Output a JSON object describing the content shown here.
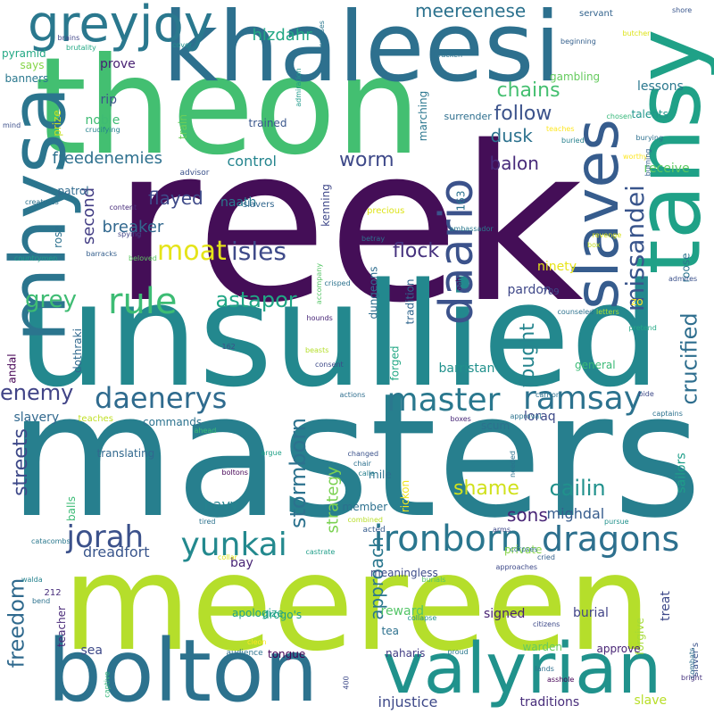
{
  "words": [
    {
      "text": "reek",
      "color": "#440e57"
    },
    {
      "text": "masters",
      "color": "#277f8e"
    },
    {
      "text": "unsullied",
      "color": "#23888e"
    },
    {
      "text": "theon",
      "color": "#43bf71"
    },
    {
      "text": "meereen",
      "color": "#b5de2b"
    },
    {
      "text": "khaleesi",
      "color": "#2d708e"
    },
    {
      "text": "tansy",
      "color": "#1fa187"
    },
    {
      "text": "bolton",
      "color": "#2c728e"
    },
    {
      "text": "valyrian",
      "color": "#20928c"
    },
    {
      "text": "mhysa",
      "color": "#2b758e"
    },
    {
      "text": "slaves",
      "color": "#365c8d"
    },
    {
      "text": "greyjoy",
      "color": "#2a788e"
    },
    {
      "text": "daario",
      "color": "#3b528b"
    },
    {
      "text": "rule",
      "color": "#3dbc74"
    },
    {
      "text": "master",
      "color": "#2a788e"
    },
    {
      "text": "ramsay",
      "color": "#2c728e"
    },
    {
      "text": "daenerys",
      "color": "#2f6b8e"
    },
    {
      "text": "ironborn",
      "color": "#2a768e"
    },
    {
      "text": "dragons",
      "color": "#2d708e"
    },
    {
      "text": "yunkai",
      "color": "#23898e"
    },
    {
      "text": "jorah",
      "color": "#3b518b"
    },
    {
      "text": "missandei",
      "color": "#39558c"
    },
    {
      "text": "moat",
      "color": "#e5e419"
    },
    {
      "text": "isles",
      "color": "#3e4a89"
    },
    {
      "text": "grey",
      "color": "#3fbc73"
    },
    {
      "text": "astapor",
      "color": "#21a685"
    },
    {
      "text": "freedom",
      "color": "#306a8e"
    },
    {
      "text": "chains",
      "color": "#44bf70"
    },
    {
      "text": "enemy",
      "color": "#414487"
    },
    {
      "text": "stormborn",
      "color": "#2c728e"
    },
    {
      "text": "crucified",
      "color": "#2e6e8e"
    },
    {
      "text": "fought",
      "color": "#25858e"
    },
    {
      "text": "cailin",
      "color": "#21918c"
    },
    {
      "text": "shame",
      "color": "#d0e11c"
    },
    {
      "text": "meereenese",
      "color": "#2c728e"
    },
    {
      "text": "hizdahr",
      "color": "#22a884"
    },
    {
      "text": "worm",
      "color": "#3e4989"
    },
    {
      "text": "follow",
      "color": "#3b528b"
    },
    {
      "text": "balon",
      "color": "#472a7a"
    },
    {
      "text": "flock",
      "color": "#46327e"
    },
    {
      "text": "flayed",
      "color": "#3e4a89"
    },
    {
      "text": "breaker",
      "color": "#31688e"
    },
    {
      "text": "freedenemies",
      "color": "#2d708e"
    },
    {
      "text": "control",
      "color": "#25858e"
    },
    {
      "text": "second",
      "color": "#433e85"
    },
    {
      "text": "streets",
      "color": "#3e4989"
    },
    {
      "text": "approach",
      "color": "#2a778e"
    },
    {
      "text": "sons",
      "color": "#482576"
    },
    {
      "text": "dusk",
      "color": "#2c728e"
    },
    {
      "text": "strategy",
      "color": "#7ad151"
    },
    {
      "text": "mighdal",
      "color": "#365c8d"
    },
    {
      "text": "navy",
      "color": "#25838e"
    },
    {
      "text": "dreadfort",
      "color": "#39558c"
    },
    {
      "text": "pardon",
      "color": "#3f4889"
    },
    {
      "text": "ninety",
      "color": "#e7e419"
    },
    {
      "text": "roose",
      "color": "#2b758e"
    },
    {
      "text": "zo",
      "color": "#fde725"
    },
    {
      "text": "naath",
      "color": "#2a788e"
    },
    {
      "text": "patrol",
      "color": "#306a8e"
    },
    {
      "text": "rose",
      "color": "#2c718e"
    },
    {
      "text": "pyramid",
      "color": "#22a884"
    },
    {
      "text": "says",
      "color": "#86d549"
    },
    {
      "text": "banners",
      "color": "#2a788e"
    },
    {
      "text": "prove",
      "color": "#482173"
    },
    {
      "text": "rip",
      "color": "#3b528b"
    },
    {
      "text": "noble",
      "color": "#3fbc73"
    },
    {
      "text": "prize",
      "color": "#c8e020"
    },
    {
      "text": "train",
      "color": "#6ccd5a"
    },
    {
      "text": "trained",
      "color": "#39568c"
    },
    {
      "text": "kenning",
      "color": "#3f4889"
    },
    {
      "text": "marching",
      "color": "#2a768e"
    },
    {
      "text": "surrender",
      "color": "#2e6f8e"
    },
    {
      "text": "163",
      "color": "#2c728e"
    },
    {
      "text": "gambling",
      "color": "#65cb5e"
    },
    {
      "text": "lessons",
      "color": "#2a788e"
    },
    {
      "text": "talents",
      "color": "#1f978b"
    },
    {
      "text": "receive",
      "color": "#5ec962"
    },
    {
      "text": "slavers",
      "color": "#31678e"
    },
    {
      "text": "precious",
      "color": "#dde318"
    },
    {
      "text": "forged",
      "color": "#22a884"
    },
    {
      "text": "tradition",
      "color": "#31678e"
    },
    {
      "text": "dungeons",
      "color": "#2e6d8e"
    },
    {
      "text": "barristan",
      "color": "#21918c"
    },
    {
      "text": "general",
      "color": "#3aba76"
    },
    {
      "text": "andal",
      "color": "#440154"
    },
    {
      "text": "dothraki",
      "color": "#31688e"
    },
    {
      "text": "slavery",
      "color": "#31688e"
    },
    {
      "text": "commands",
      "color": "#2c728e"
    },
    {
      "text": "teaches",
      "color": "#c0df25"
    },
    {
      "text": "translating",
      "color": "#31688e"
    },
    {
      "text": "balls",
      "color": "#3bbb75"
    },
    {
      "text": "rickon",
      "color": "#f1e51d"
    },
    {
      "text": "loraq",
      "color": "#3e4a89"
    },
    {
      "text": "scum",
      "color": "#2c718e"
    },
    {
      "text": "mile",
      "color": "#2c718e"
    },
    {
      "text": "member",
      "color": "#2d708e"
    },
    {
      "text": "bay",
      "color": "#482576"
    },
    {
      "text": "sailors",
      "color": "#1f9e89"
    },
    {
      "text": "meaningless",
      "color": "#3e4c8a"
    },
    {
      "text": "reward",
      "color": "#54c568"
    },
    {
      "text": "tea",
      "color": "#2d718e"
    },
    {
      "text": "signed",
      "color": "#482173"
    },
    {
      "text": "burial",
      "color": "#414487"
    },
    {
      "text": "treat",
      "color": "#3e4989"
    },
    {
      "text": "forgive",
      "color": "#a5db36"
    },
    {
      "text": "apologize",
      "color": "#1fa287"
    },
    {
      "text": "drogo's",
      "color": "#1fa187"
    },
    {
      "text": "tongue",
      "color": "#440154"
    },
    {
      "text": "naharis",
      "color": "#433e85"
    },
    {
      "text": "warden",
      "color": "#65cb5e"
    },
    {
      "text": "approve",
      "color": "#482475"
    },
    {
      "text": "sea",
      "color": "#3e4a89"
    },
    {
      "text": "injustice",
      "color": "#3e4989"
    },
    {
      "text": "traditions",
      "color": "#472c7a"
    },
    {
      "text": "slave",
      "color": "#b8de29"
    },
    {
      "text": "slaver's",
      "color": "#3b528b"
    },
    {
      "text": "teacher",
      "color": "#482878"
    },
    {
      "text": "212",
      "color": "#472d7b"
    },
    {
      "text": "private",
      "color": "#86d549"
    },
    {
      "text": "servant",
      "color": "#33638d"
    },
    {
      "text": "shore",
      "color": "#39568c"
    },
    {
      "text": "butcher",
      "color": "#dde318"
    },
    {
      "text": "beginning",
      "color": "#35608d"
    },
    {
      "text": "bracken",
      "color": "#2c728e"
    },
    {
      "text": "crosses",
      "color": "#2a778e"
    },
    {
      "text": "cover",
      "color": "#21908d"
    },
    {
      "text": "brains",
      "color": "#404588"
    },
    {
      "text": "brutality",
      "color": "#22a884"
    },
    {
      "text": "admiration",
      "color": "#1f9a8a"
    },
    {
      "text": "mind",
      "color": "#3c4f8a"
    },
    {
      "text": "crucifying",
      "color": "#26818e"
    },
    {
      "text": "teaches",
      "color": "#fde725"
    },
    {
      "text": "buried",
      "color": "#27808e"
    },
    {
      "text": "chosen",
      "color": "#35b779"
    },
    {
      "text": "burying",
      "color": "#2d708e"
    },
    {
      "text": "advisor",
      "color": "#3b528b"
    },
    {
      "text": "worthy",
      "color": "#fde725"
    },
    {
      "text": "burning",
      "color": "#34618d"
    },
    {
      "text": "creatures",
      "color": "#2c728e"
    },
    {
      "text": "content",
      "color": "#472c7a"
    },
    {
      "text": "spying",
      "color": "#414487"
    },
    {
      "text": "revenge",
      "color": "#d8e219"
    },
    {
      "text": "betray",
      "color": "#2d708e"
    },
    {
      "text": "ambassador",
      "color": "#2a788e"
    },
    {
      "text": "box",
      "color": "#c2df23"
    },
    {
      "text": "admires",
      "color": "#3b518b"
    },
    {
      "text": "beloved",
      "color": "#5ec962"
    },
    {
      "text": "barracks",
      "color": "#355f8d"
    },
    {
      "text": "countrymen",
      "color": "#1e9d89"
    },
    {
      "text": "accompany",
      "color": "#56c667"
    },
    {
      "text": "crisped",
      "color": "#2c728e"
    },
    {
      "text": "aah",
      "color": "#440154"
    },
    {
      "text": "709",
      "color": "#3e4a89"
    },
    {
      "text": "pretend",
      "color": "#22a884"
    },
    {
      "text": "hounds",
      "color": "#482677"
    },
    {
      "text": "counseled",
      "color": "#2c718e"
    },
    {
      "text": "letters",
      "color": "#a5db36"
    },
    {
      "text": "beasts",
      "color": "#b5de2b"
    },
    {
      "text": "162",
      "color": "#3c4f8a"
    },
    {
      "text": "consent",
      "color": "#3e4a89"
    },
    {
      "text": "actions",
      "color": "#2e6e8e"
    },
    {
      "text": "carrion",
      "color": "#2c728e"
    },
    {
      "text": "bide",
      "color": "#3e4a89"
    },
    {
      "text": "approval",
      "color": "#2c728e"
    },
    {
      "text": "captains",
      "color": "#2c728e"
    },
    {
      "text": "boxes",
      "color": "#482878"
    },
    {
      "text": "ahead",
      "color": "#3bbb75"
    },
    {
      "text": "needed",
      "color": "#2c728e"
    },
    {
      "text": "changed",
      "color": "#3b528b"
    },
    {
      "text": "chair",
      "color": "#2d708e"
    },
    {
      "text": "calla",
      "color": "#27808e"
    },
    {
      "text": "argue",
      "color": "#1fa187"
    },
    {
      "text": "boltons",
      "color": "#440154"
    },
    {
      "text": "acted",
      "color": "#365c8d"
    },
    {
      "text": "arms",
      "color": "#3e4989"
    },
    {
      "text": "tired",
      "color": "#2c728e"
    },
    {
      "text": "combined",
      "color": "#b8de29"
    },
    {
      "text": "pursue",
      "color": "#21918c"
    },
    {
      "text": "catacombs",
      "color": "#2a788e"
    },
    {
      "text": "collar",
      "color": "#dde318"
    },
    {
      "text": "castrate",
      "color": "#1f9e89"
    },
    {
      "text": "cried",
      "color": "#34618d"
    },
    {
      "text": "approaches",
      "color": "#3e4a89"
    },
    {
      "text": "corpses",
      "color": "#2e6f8e"
    },
    {
      "text": "walda",
      "color": "#26828e"
    },
    {
      "text": "burials",
      "color": "#54c568"
    },
    {
      "text": "bend",
      "color": "#2c728e"
    },
    {
      "text": "collapse",
      "color": "#21918c"
    },
    {
      "text": "citizens",
      "color": "#3e4a89"
    },
    {
      "text": "cleon",
      "color": "#fde725"
    },
    {
      "text": "audience",
      "color": "#2c728e"
    },
    {
      "text": "proud",
      "color": "#2a788e"
    },
    {
      "text": "lands",
      "color": "#2d708e"
    },
    {
      "text": "asshole",
      "color": "#440154"
    },
    {
      "text": "combats",
      "color": "#2d708e"
    },
    {
      "text": "bright",
      "color": "#46337e"
    },
    {
      "text": "captive",
      "color": "#35b779"
    },
    {
      "text": "400",
      "color": "#3e4a89"
    },
    {
      "text": "choices",
      "color": "#2e6e8e"
    }
  ]
}
